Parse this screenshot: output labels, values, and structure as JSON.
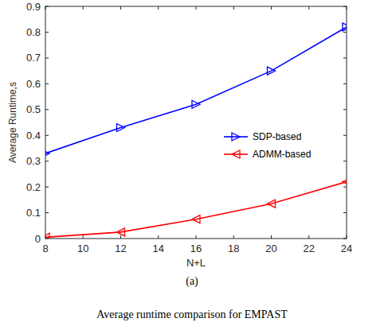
{
  "chart_data": {
    "type": "line",
    "x_label": "N+L",
    "y_label": "Average Runtime,s",
    "annotations": [
      "(a)",
      "Average runtime comparison for EMPAST"
    ],
    "x": [
      8,
      12,
      16,
      20,
      24
    ],
    "series": [
      {
        "name": "SDP-based",
        "color": "#0000ff",
        "marker": "triangle-right",
        "line_style": "solid",
        "values": [
          0.33,
          0.43,
          0.52,
          0.65,
          0.82
        ]
      },
      {
        "name": "ADMM-based",
        "color": "#ff0000",
        "marker": "triangle-left",
        "line_style": "solid",
        "values": [
          0.005,
          0.025,
          0.075,
          0.135,
          0.22
        ]
      }
    ],
    "xlim": [
      8,
      24
    ],
    "xticks": [
      8,
      10,
      12,
      14,
      16,
      18,
      20,
      22,
      24
    ],
    "ylim": [
      0,
      0.9
    ],
    "yticks": [
      0,
      0.1,
      0.2,
      0.3,
      0.4,
      0.5,
      0.6,
      0.7,
      0.8,
      0.9
    ],
    "grid": false,
    "legend": "center-right"
  }
}
